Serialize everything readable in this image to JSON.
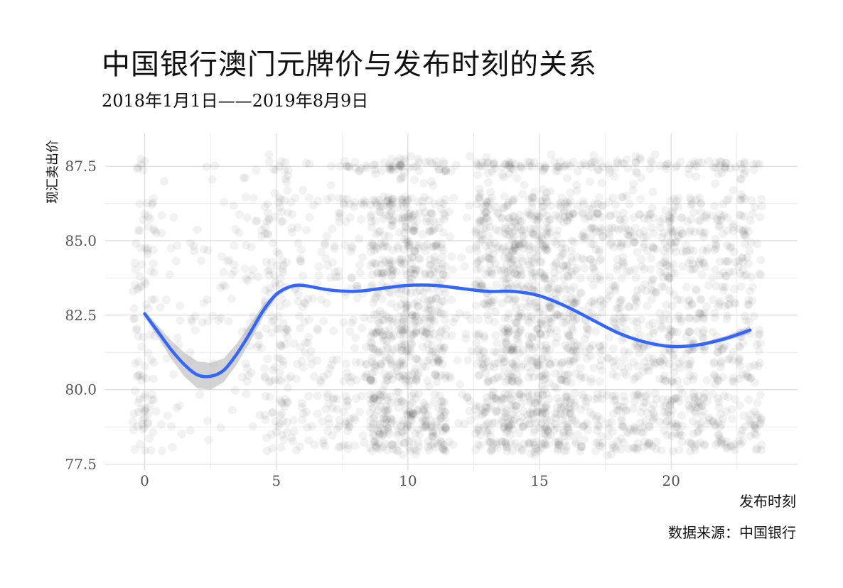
{
  "title": "中国银行澳门元牌价与发布时刻的关系",
  "subtitle": "2018年1月1日——2019年8月9日",
  "caption": "数据来源：中国银行",
  "chart_data": {
    "type": "scatter",
    "xlabel": "发布时刻",
    "ylabel": "现汇卖出价",
    "xlim": [
      -1.5,
      24.8
    ],
    "ylim": [
      77.3,
      88.6
    ],
    "x_ticks": [
      0,
      5,
      10,
      15,
      20
    ],
    "x_tick_labels": [
      "0",
      "5",
      "10",
      "15",
      "20"
    ],
    "y_ticks": [
      77.5,
      80.0,
      82.5,
      85.0,
      87.5
    ],
    "y_tick_labels": [
      "77.5",
      "80.0",
      "82.5",
      "85.0",
      "87.5"
    ],
    "grid": true,
    "legend": "none",
    "point_color": "#000000",
    "smooth_color": "#3366FF",
    "ribbon_color": "#BBBBBB",
    "point_density_by_hour": [
      {
        "hour": 0,
        "density": 0.35
      },
      {
        "hour": 1,
        "density": 0.05
      },
      {
        "hour": 2,
        "density": 0.04
      },
      {
        "hour": 3,
        "density": 0.05
      },
      {
        "hour": 4,
        "density": 0.12
      },
      {
        "hour": 5,
        "density": 0.45
      },
      {
        "hour": 6,
        "density": 0.2
      },
      {
        "hour": 7,
        "density": 0.22
      },
      {
        "hour": 8,
        "density": 0.3
      },
      {
        "hour": 9,
        "density": 1.0
      },
      {
        "hour": 10,
        "density": 1.0
      },
      {
        "hour": 11,
        "density": 0.85
      },
      {
        "hour": 12,
        "density": 0.1
      },
      {
        "hour": 13,
        "density": 0.75
      },
      {
        "hour": 14,
        "density": 1.0
      },
      {
        "hour": 15,
        "density": 1.0
      },
      {
        "hour": 16,
        "density": 0.8
      },
      {
        "hour": 17,
        "density": 0.55
      },
      {
        "hour": 18,
        "density": 0.5
      },
      {
        "hour": 19,
        "density": 0.55
      },
      {
        "hour": 20,
        "density": 0.6
      },
      {
        "hour": 21,
        "density": 0.55
      },
      {
        "hour": 22,
        "density": 0.5
      },
      {
        "hour": 23,
        "density": 0.45
      }
    ],
    "price_levels": [
      78.1,
      78.6,
      78.9,
      79.3,
      79.7,
      80.4,
      80.9,
      81.4,
      81.9,
      82.4,
      82.9,
      83.4,
      83.9,
      84.3,
      84.8,
      85.3,
      85.8,
      86.3,
      87.5
    ],
    "smooth": {
      "x": [
        0,
        0.5,
        1,
        1.5,
        2,
        2.5,
        3,
        3.5,
        4,
        4.5,
        5,
        5.5,
        6,
        7,
        8,
        9,
        10,
        11,
        12,
        13,
        14,
        15,
        16,
        17,
        18,
        19,
        20,
        21,
        22,
        23
      ],
      "y": [
        82.55,
        81.95,
        81.35,
        80.85,
        80.5,
        80.45,
        80.65,
        81.2,
        81.9,
        82.65,
        83.2,
        83.45,
        83.5,
        83.35,
        83.3,
        83.4,
        83.5,
        83.5,
        83.4,
        83.3,
        83.3,
        83.15,
        82.8,
        82.35,
        81.9,
        81.6,
        81.45,
        81.5,
        81.7,
        82.0
      ],
      "ribbon_lower": [
        82.45,
        81.75,
        81.05,
        80.45,
        80.05,
        80.0,
        80.25,
        80.85,
        81.6,
        82.45,
        83.1,
        83.4,
        83.45,
        83.32,
        83.28,
        83.38,
        83.48,
        83.48,
        83.38,
        83.28,
        83.28,
        83.12,
        82.76,
        82.31,
        81.86,
        81.56,
        81.41,
        81.45,
        81.62,
        81.88
      ],
      "ribbon_upper": [
        82.65,
        82.15,
        81.65,
        81.25,
        80.95,
        80.9,
        81.05,
        81.55,
        82.2,
        82.85,
        83.3,
        83.5,
        83.55,
        83.38,
        83.32,
        83.42,
        83.52,
        83.52,
        83.42,
        83.32,
        83.32,
        83.18,
        82.84,
        82.39,
        81.94,
        81.64,
        81.49,
        81.55,
        81.78,
        82.12
      ]
    }
  }
}
